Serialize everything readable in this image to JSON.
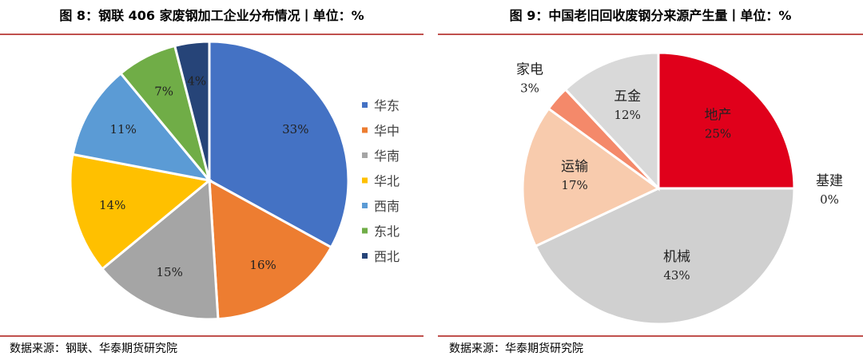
{
  "left": {
    "title": "图 8：钢联 406 家废钢加工企业分布情况丨单位：%",
    "source": "数据来源：钢联、华泰期货研究院",
    "chart_data": {
      "type": "pie",
      "legend_placement": "right",
      "slices": [
        {
          "label": "华东",
          "value": 33,
          "text": "33%",
          "color": "#4472c4"
        },
        {
          "label": "华中",
          "value": 16,
          "text": "16%",
          "color": "#ed7d31"
        },
        {
          "label": "华南",
          "value": 15,
          "text": "15%",
          "color": "#a5a5a5"
        },
        {
          "label": "华北",
          "value": 14,
          "text": "14%",
          "color": "#ffc000"
        },
        {
          "label": "西南",
          "value": 11,
          "text": "11%",
          "color": "#5b9bd5"
        },
        {
          "label": "东北",
          "value": 7,
          "text": "7%",
          "color": "#70ad47"
        },
        {
          "label": "西北",
          "value": 4,
          "text": "4%",
          "color": "#264478"
        }
      ]
    }
  },
  "right": {
    "title": "图 9：中国老旧回收废钢分来源产生量丨单位：%",
    "source": "数据来源：华泰期货研究院",
    "chart_data": {
      "type": "pie",
      "legend_placement": "none",
      "slices": [
        {
          "label": "地产",
          "value": 25,
          "text": "25%",
          "color": "#e0001b"
        },
        {
          "label": "基建",
          "value": 0,
          "text": "0%",
          "color": "#ffffff"
        },
        {
          "label": "机械",
          "value": 43,
          "text": "43%",
          "color": "#d0d0d0"
        },
        {
          "label": "运输",
          "value": 17,
          "text": "17%",
          "color": "#f8cbad"
        },
        {
          "label": "家电",
          "value": 3,
          "text": "3%",
          "color": "#f4896a"
        },
        {
          "label": "五金",
          "value": 12,
          "text": "12%",
          "color": "#d9d9d9"
        }
      ]
    }
  }
}
